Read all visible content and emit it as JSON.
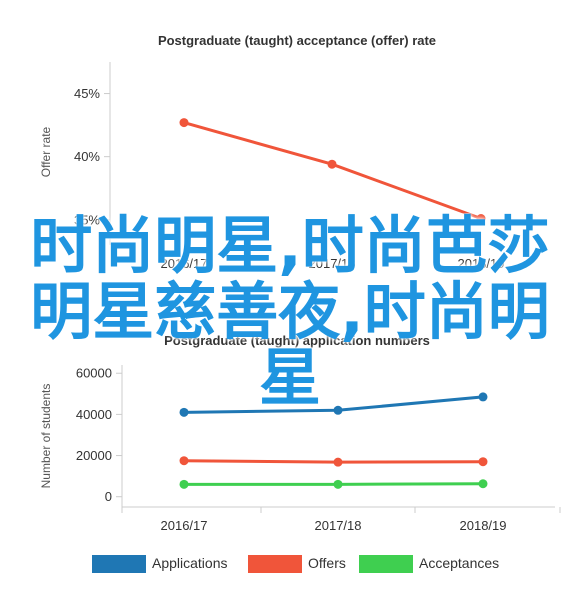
{
  "chart_data": [
    {
      "type": "line",
      "title": "Postgraduate (taught) acceptance (offer) rate",
      "xlabel": "",
      "ylabel": "Offer rate",
      "categories": [
        "2016/17",
        "2017/18",
        "2018/19"
      ],
      "ylim": [
        0.33,
        0.475
      ],
      "yticks": [
        "45%",
        "40%",
        "35%"
      ],
      "ytick_values": [
        0.45,
        0.4,
        0.35
      ],
      "grid": false,
      "series": [
        {
          "color": "#f0553a",
          "values": [
            0.427,
            0.394,
            0.351
          ]
        }
      ]
    },
    {
      "type": "line",
      "title": "Postgraduate (taught) application numbers",
      "xlabel": "",
      "ylabel": "Number of students",
      "categories": [
        "2016/17",
        "2017/18",
        "2018/19"
      ],
      "ylim": [
        -5000,
        64000
      ],
      "yticks": [
        "60000",
        "40000",
        "20000",
        "0"
      ],
      "ytick_values": [
        60000,
        40000,
        20000,
        0
      ],
      "grid": false,
      "legend_position": "bottom",
      "series": [
        {
          "name": "Applications",
          "color": "#1f77b4",
          "values": [
            41000,
            42000,
            48500
          ]
        },
        {
          "name": "Offers",
          "color": "#f0553a",
          "values": [
            17500,
            16800,
            17000
          ]
        },
        {
          "name": "Acceptances",
          "color": "#3fcf50",
          "values": [
            6000,
            6000,
            6300
          ]
        }
      ]
    }
  ],
  "overlay_text": [
    "时尚明星,时尚芭莎",
    "明星慈善夜,时尚明",
    "星"
  ]
}
